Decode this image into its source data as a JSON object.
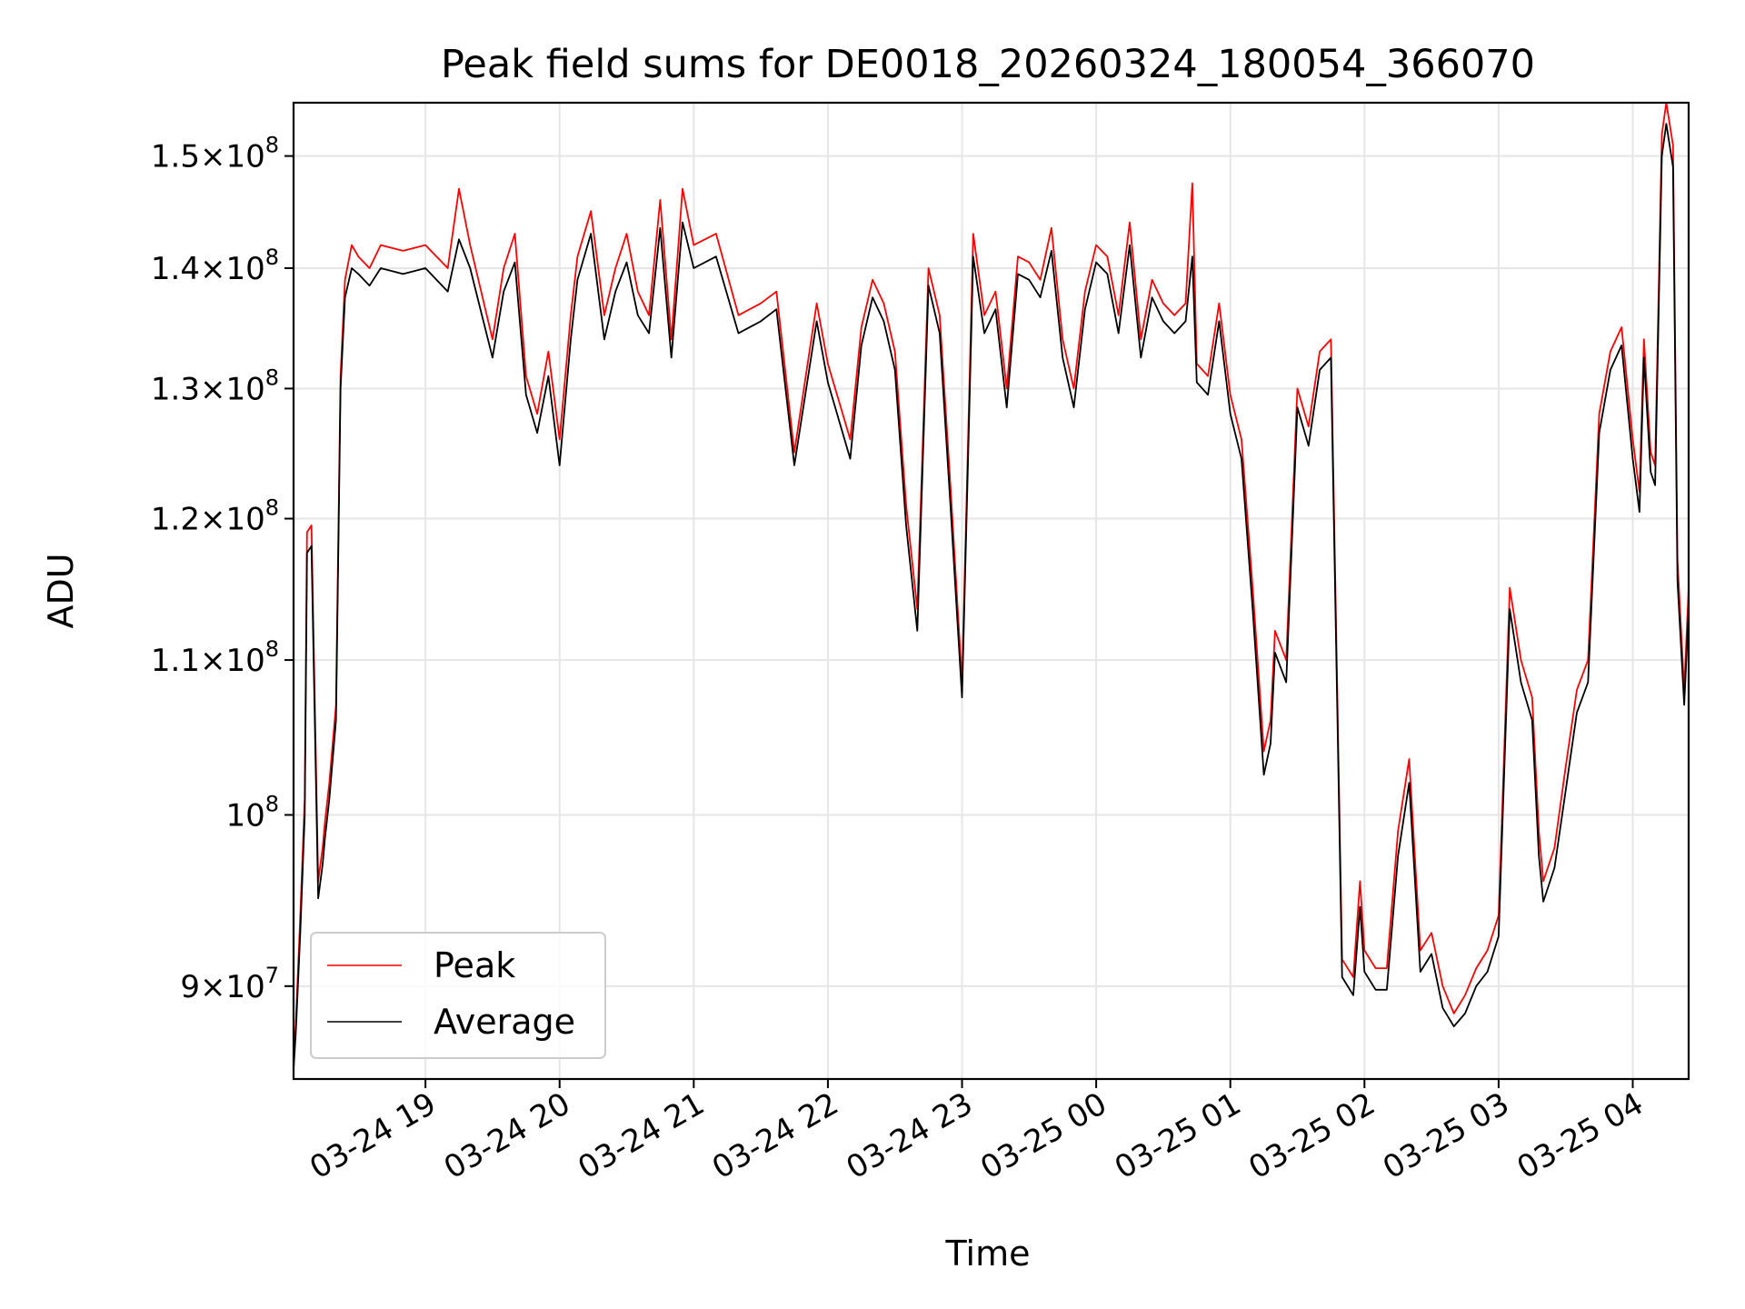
{
  "chart_data": {
    "type": "line",
    "title": "Peak field sums for DE0018_20260324_180054_366070",
    "xlabel": "Time",
    "ylabel": "ADU",
    "yscale": "log",
    "grid": true,
    "legend_position": "lower-left",
    "xlim": [
      "2026-03-24 18:01",
      "2026-03-25 04:25"
    ],
    "ylim": [
      85000000,
      155000000
    ],
    "x_ticks": [
      "03-24 19",
      "03-24 20",
      "03-24 21",
      "03-24 22",
      "03-24 23",
      "03-25 00",
      "03-25 01",
      "03-25 02",
      "03-25 03",
      "03-25 04"
    ],
    "y_ticks": [
      {
        "value": 90000000,
        "mant": "9",
        "exp": "7"
      },
      {
        "value": 100000000,
        "mant": "",
        "exp": "8"
      },
      {
        "value": 110000000,
        "mant": "1.1",
        "exp": "8"
      },
      {
        "value": 120000000,
        "mant": "1.2",
        "exp": "8"
      },
      {
        "value": 130000000,
        "mant": "1.3",
        "exp": "8"
      },
      {
        "value": 140000000,
        "mant": "1.4",
        "exp": "8"
      },
      {
        "value": 150000000,
        "mant": "1.5",
        "exp": "8"
      }
    ],
    "tick_times_prefix": "2026-",
    "series": [
      {
        "name": "Peak",
        "color": "#ff0000",
        "x": [
          "2026-03-24 18:01",
          "2026-03-24 18:02",
          "2026-03-24 18:04",
          "2026-03-24 18:06",
          "2026-03-24 18:07",
          "2026-03-24 18:09",
          "2026-03-24 18:12",
          "2026-03-24 18:14",
          "2026-03-24 18:15",
          "2026-03-24 18:17",
          "2026-03-24 18:20",
          "2026-03-24 18:22",
          "2026-03-24 18:24",
          "2026-03-24 18:27",
          "2026-03-24 18:30",
          "2026-03-24 18:35",
          "2026-03-24 18:40",
          "2026-03-24 18:50",
          "2026-03-24 19:00",
          "2026-03-24 19:10",
          "2026-03-24 19:15",
          "2026-03-24 19:20",
          "2026-03-24 19:30",
          "2026-03-24 19:35",
          "2026-03-24 19:40",
          "2026-03-24 19:45",
          "2026-03-24 19:50",
          "2026-03-24 19:55",
          "2026-03-24 20:00",
          "2026-03-24 20:05",
          "2026-03-24 20:08",
          "2026-03-24 20:14",
          "2026-03-24 20:20",
          "2026-03-24 20:25",
          "2026-03-24 20:30",
          "2026-03-24 20:35",
          "2026-03-24 20:40",
          "2026-03-24 20:45",
          "2026-03-24 20:50",
          "2026-03-24 20:55",
          "2026-03-24 21:00",
          "2026-03-24 21:10",
          "2026-03-24 21:20",
          "2026-03-24 21:30",
          "2026-03-24 21:37",
          "2026-03-24 21:45",
          "2026-03-24 21:55",
          "2026-03-24 22:00",
          "2026-03-24 22:10",
          "2026-03-24 22:15",
          "2026-03-24 22:20",
          "2026-03-24 22:25",
          "2026-03-24 22:30",
          "2026-03-24 22:35",
          "2026-03-24 22:40",
          "2026-03-24 22:45",
          "2026-03-24 22:50",
          "2026-03-24 22:55",
          "2026-03-24 23:00",
          "2026-03-24 23:05",
          "2026-03-24 23:10",
          "2026-03-24 23:15",
          "2026-03-24 23:20",
          "2026-03-24 23:25",
          "2026-03-24 23:30",
          "2026-03-24 23:35",
          "2026-03-24 23:40",
          "2026-03-24 23:45",
          "2026-03-24 23:50",
          "2026-03-24 23:55",
          "2026-03-25 00:00",
          "2026-03-25 00:05",
          "2026-03-25 00:10",
          "2026-03-25 00:15",
          "2026-03-25 00:20",
          "2026-03-25 00:25",
          "2026-03-25 00:30",
          "2026-03-25 00:35",
          "2026-03-25 00:40",
          "2026-03-25 00:43",
          "2026-03-25 00:45",
          "2026-03-25 00:50",
          "2026-03-25 00:55",
          "2026-03-25 01:00",
          "2026-03-25 01:05",
          "2026-03-25 01:10",
          "2026-03-25 01:15",
          "2026-03-25 01:18",
          "2026-03-25 01:20",
          "2026-03-25 01:25",
          "2026-03-25 01:30",
          "2026-03-25 01:35",
          "2026-03-25 01:40",
          "2026-03-25 01:45",
          "2026-03-25 01:50",
          "2026-03-25 01:55",
          "2026-03-25 01:58",
          "2026-03-25 02:00",
          "2026-03-25 02:05",
          "2026-03-25 02:10",
          "2026-03-25 02:15",
          "2026-03-25 02:20",
          "2026-03-25 02:25",
          "2026-03-25 02:30",
          "2026-03-25 02:35",
          "2026-03-25 02:40",
          "2026-03-25 02:45",
          "2026-03-25 02:50",
          "2026-03-25 02:55",
          "2026-03-25 03:00",
          "2026-03-25 03:05",
          "2026-03-25 03:10",
          "2026-03-25 03:15",
          "2026-03-25 03:18",
          "2026-03-25 03:20",
          "2026-03-25 03:25",
          "2026-03-25 03:30",
          "2026-03-25 03:35",
          "2026-03-25 03:40",
          "2026-03-25 03:45",
          "2026-03-25 03:50",
          "2026-03-25 03:55",
          "2026-03-25 04:00",
          "2026-03-25 04:03",
          "2026-03-25 04:05",
          "2026-03-25 04:08",
          "2026-03-25 04:10",
          "2026-03-25 04:13",
          "2026-03-25 04:15",
          "2026-03-25 04:18",
          "2026-03-25 04:20",
          "2026-03-25 04:23",
          "2026-03-25 04:25"
        ],
        "y": [
          86000000,
          88000000,
          94000000,
          101000000,
          119000000,
          119500000,
          96000000,
          98000000,
          99500000,
          102000000,
          107000000,
          131000000,
          139000000,
          142000000,
          141000000,
          140000000,
          142000000,
          141500000,
          142000000,
          140000000,
          147000000,
          142000000,
          134000000,
          140000000,
          143000000,
          131000000,
          128000000,
          133000000,
          126000000,
          136000000,
          141000000,
          145000000,
          136000000,
          140000000,
          143000000,
          138000000,
          136000000,
          146000000,
          134000000,
          147000000,
          142000000,
          143000000,
          136000000,
          137000000,
          138000000,
          125000000,
          137000000,
          132000000,
          126000000,
          135000000,
          139000000,
          137000000,
          133000000,
          121000000,
          113500000,
          140000000,
          136000000,
          122000000,
          108500000,
          143000000,
          136000000,
          138000000,
          130000000,
          141000000,
          140500000,
          139000000,
          143500000,
          134000000,
          130000000,
          138000000,
          142000000,
          141000000,
          136000000,
          144000000,
          134000000,
          139000000,
          137000000,
          136000000,
          137000000,
          147500000,
          132000000,
          131000000,
          137000000,
          129500000,
          126000000,
          115000000,
          104000000,
          106000000,
          112000000,
          110000000,
          130000000,
          127000000,
          133000000,
          134000000,
          91500000,
          90500000,
          96000000,
          92000000,
          91000000,
          91000000,
          99000000,
          103500000,
          92000000,
          93000000,
          90000000,
          88500000,
          89500000,
          91000000,
          92000000,
          94000000,
          115000000,
          110000000,
          107500000,
          99000000,
          96000000,
          98000000,
          103000000,
          108000000,
          110000000,
          128000000,
          133000000,
          135000000,
          126000000,
          122000000,
          134000000,
          125000000,
          124000000,
          152000000,
          155000000,
          151000000,
          117000000,
          108000000,
          115000000
        ]
      },
      {
        "name": "Average",
        "color": "#000000",
        "x": [
          "2026-03-24 18:01",
          "2026-03-24 18:02",
          "2026-03-24 18:04",
          "2026-03-24 18:06",
          "2026-03-24 18:07",
          "2026-03-24 18:09",
          "2026-03-24 18:12",
          "2026-03-24 18:14",
          "2026-03-24 18:15",
          "2026-03-24 18:17",
          "2026-03-24 18:20",
          "2026-03-24 18:22",
          "2026-03-24 18:24",
          "2026-03-24 18:27",
          "2026-03-24 18:30",
          "2026-03-24 18:35",
          "2026-03-24 18:40",
          "2026-03-24 18:50",
          "2026-03-24 19:00",
          "2026-03-24 19:10",
          "2026-03-24 19:15",
          "2026-03-24 19:20",
          "2026-03-24 19:30",
          "2026-03-24 19:35",
          "2026-03-24 19:40",
          "2026-03-24 19:45",
          "2026-03-24 19:50",
          "2026-03-24 19:55",
          "2026-03-24 20:00",
          "2026-03-24 20:05",
          "2026-03-24 20:08",
          "2026-03-24 20:14",
          "2026-03-24 20:20",
          "2026-03-24 20:25",
          "2026-03-24 20:30",
          "2026-03-24 20:35",
          "2026-03-24 20:40",
          "2026-03-24 20:45",
          "2026-03-24 20:50",
          "2026-03-24 20:55",
          "2026-03-24 21:00",
          "2026-03-24 21:10",
          "2026-03-24 21:20",
          "2026-03-24 21:30",
          "2026-03-24 21:37",
          "2026-03-24 21:45",
          "2026-03-24 21:55",
          "2026-03-24 22:00",
          "2026-03-24 22:10",
          "2026-03-24 22:15",
          "2026-03-24 22:20",
          "2026-03-24 22:25",
          "2026-03-24 22:30",
          "2026-03-24 22:35",
          "2026-03-24 22:40",
          "2026-03-24 22:45",
          "2026-03-24 22:50",
          "2026-03-24 22:55",
          "2026-03-24 23:00",
          "2026-03-24 23:05",
          "2026-03-24 23:10",
          "2026-03-24 23:15",
          "2026-03-24 23:20",
          "2026-03-24 23:25",
          "2026-03-24 23:30",
          "2026-03-24 23:35",
          "2026-03-24 23:40",
          "2026-03-24 23:45",
          "2026-03-24 23:50",
          "2026-03-24 23:55",
          "2026-03-25 00:00",
          "2026-03-25 00:05",
          "2026-03-25 00:10",
          "2026-03-25 00:15",
          "2026-03-25 00:20",
          "2026-03-25 00:25",
          "2026-03-25 00:30",
          "2026-03-25 00:35",
          "2026-03-25 00:40",
          "2026-03-25 00:43",
          "2026-03-25 00:45",
          "2026-03-25 00:50",
          "2026-03-25 00:55",
          "2026-03-25 01:00",
          "2026-03-25 01:05",
          "2026-03-25 01:10",
          "2026-03-25 01:15",
          "2026-03-25 01:18",
          "2026-03-25 01:20",
          "2026-03-25 01:25",
          "2026-03-25 01:30",
          "2026-03-25 01:35",
          "2026-03-25 01:40",
          "2026-03-25 01:45",
          "2026-03-25 01:50",
          "2026-03-25 01:55",
          "2026-03-25 01:58",
          "2026-03-25 02:00",
          "2026-03-25 02:05",
          "2026-03-25 02:10",
          "2026-03-25 02:15",
          "2026-03-25 02:20",
          "2026-03-25 02:25",
          "2026-03-25 02:30",
          "2026-03-25 02:35",
          "2026-03-25 02:40",
          "2026-03-25 02:45",
          "2026-03-25 02:50",
          "2026-03-25 02:55",
          "2026-03-25 03:00",
          "2026-03-25 03:05",
          "2026-03-25 03:10",
          "2026-03-25 03:15",
          "2026-03-25 03:18",
          "2026-03-25 03:20",
          "2026-03-25 03:25",
          "2026-03-25 03:30",
          "2026-03-25 03:35",
          "2026-03-25 03:40",
          "2026-03-25 03:45",
          "2026-03-25 03:50",
          "2026-03-25 03:55",
          "2026-03-25 04:00",
          "2026-03-25 04:03",
          "2026-03-25 04:05",
          "2026-03-25 04:08",
          "2026-03-25 04:10",
          "2026-03-25 04:13",
          "2026-03-25 04:15",
          "2026-03-25 04:18",
          "2026-03-25 04:20",
          "2026-03-25 04:23",
          "2026-03-25 04:25"
        ],
        "y": [
          85500000,
          87500000,
          93000000,
          100000000,
          117500000,
          118000000,
          95000000,
          97000000,
          98500000,
          101000000,
          106000000,
          130000000,
          137500000,
          140000000,
          139500000,
          138500000,
          140000000,
          139500000,
          140000000,
          138000000,
          142500000,
          140000000,
          132500000,
          138000000,
          140500000,
          129500000,
          126500000,
          131000000,
          124000000,
          134000000,
          139000000,
          143000000,
          134000000,
          138000000,
          140500000,
          136000000,
          134500000,
          143500000,
          132500000,
          144000000,
          140000000,
          141000000,
          134500000,
          135500000,
          136500000,
          124000000,
          135500000,
          130500000,
          124500000,
          133500000,
          137500000,
          135500000,
          131500000,
          119500000,
          112000000,
          138500000,
          134500000,
          120500000,
          107500000,
          141000000,
          134500000,
          136500000,
          128500000,
          139500000,
          139000000,
          137500000,
          141500000,
          132500000,
          128500000,
          136500000,
          140500000,
          139500000,
          134500000,
          142000000,
          132500000,
          137500000,
          135500000,
          134500000,
          135500000,
          141000000,
          130500000,
          129500000,
          135500000,
          128000000,
          124500000,
          113500000,
          102500000,
          104500000,
          110500000,
          108500000,
          128500000,
          125500000,
          131500000,
          132500000,
          90500000,
          89500000,
          94500000,
          90800000,
          89800000,
          89800000,
          97500000,
          102000000,
          90800000,
          91800000,
          88800000,
          87800000,
          88500000,
          90000000,
          90800000,
          92800000,
          113500000,
          108500000,
          106000000,
          97500000,
          94800000,
          96800000,
          101500000,
          106500000,
          108500000,
          126500000,
          131500000,
          133500000,
          124500000,
          120500000,
          132500000,
          123500000,
          122500000,
          150000000,
          153000000,
          149000000,
          115500000,
          107000000,
          113500000
        ]
      }
    ]
  }
}
